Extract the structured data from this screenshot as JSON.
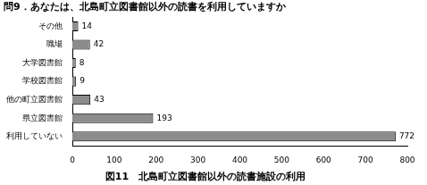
{
  "chart_data": {
    "type": "bar",
    "orientation": "horizontal",
    "title": "問9．あなたは、北島町立図書館以外の読書を利用していますか",
    "subtitle": "図11　北島町立図書館以外の読書施設の利用",
    "categories": [
      "その他",
      "職場",
      "大学図書館",
      "学校図書館",
      "他の町立図書館",
      "県立図書館",
      "利用していない"
    ],
    "values": [
      14,
      42,
      8,
      9,
      43,
      193,
      772
    ],
    "color": "#8c8c8c",
    "xlim": [
      0,
      800
    ],
    "xticks": [
      0,
      100,
      200,
      300,
      400,
      500,
      600,
      700,
      800
    ],
    "grid": false,
    "data_labels": true
  }
}
